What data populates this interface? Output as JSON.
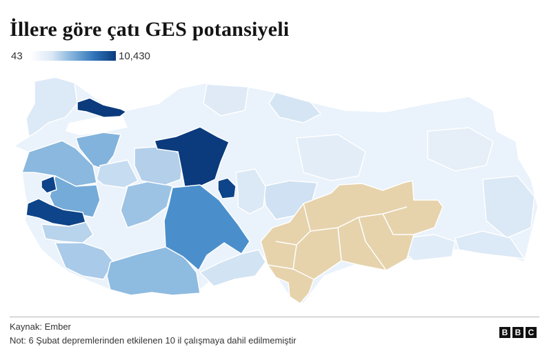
{
  "title": "İllere göre çatı GES potansiyeli",
  "legend": {
    "min_label": "43",
    "max_label": "10,430"
  },
  "colors": {
    "scale_low": "#eaf2fb",
    "scale_mid": "#7fb0da",
    "scale_high": "#0b3b7d",
    "excluded": "#e6d3ac",
    "border": "#ffffff"
  },
  "footer": {
    "source": "Kaynak: Ember",
    "note": "Not: 6 Şubat depremlerinden etkilenen 10 il çalışmaya dahil edilmemiştir",
    "logo": "BBC"
  }
}
